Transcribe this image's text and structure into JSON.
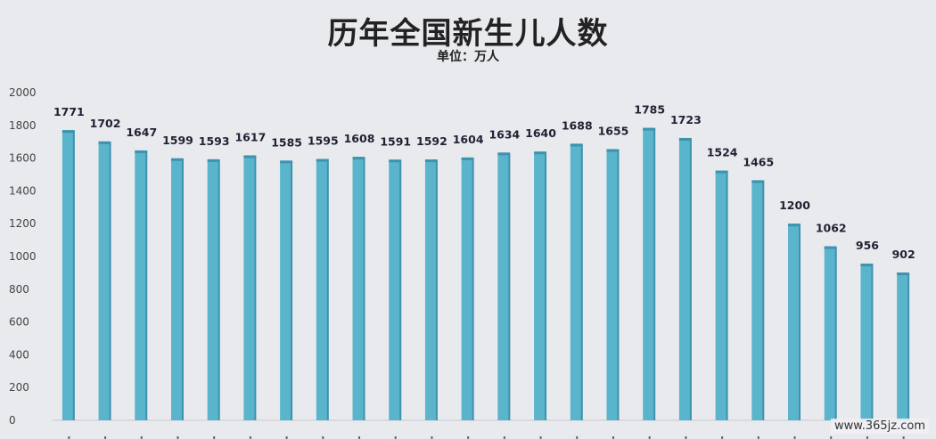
{
  "chart_data": {
    "type": "bar",
    "title": "历年全国新生儿人数",
    "subtitle": "单位：万人",
    "ylim": [
      0,
      2000
    ],
    "yticks": [
      0,
      200,
      400,
      600,
      800,
      1000,
      1200,
      1400,
      1600,
      1800,
      2000
    ],
    "values": [
      1771,
      1702,
      1647,
      1599,
      1593,
      1617,
      1585,
      1595,
      1608,
      1591,
      1592,
      1604,
      1634,
      1640,
      1688,
      1655,
      1785,
      1723,
      1524,
      1465,
      1200,
      1062,
      956,
      902
    ],
    "grid": false,
    "legend": "none",
    "bar_color": "#5ab4cc",
    "bar_shadow_color": "#3d93ad"
  },
  "watermark": "www.365jz.com"
}
